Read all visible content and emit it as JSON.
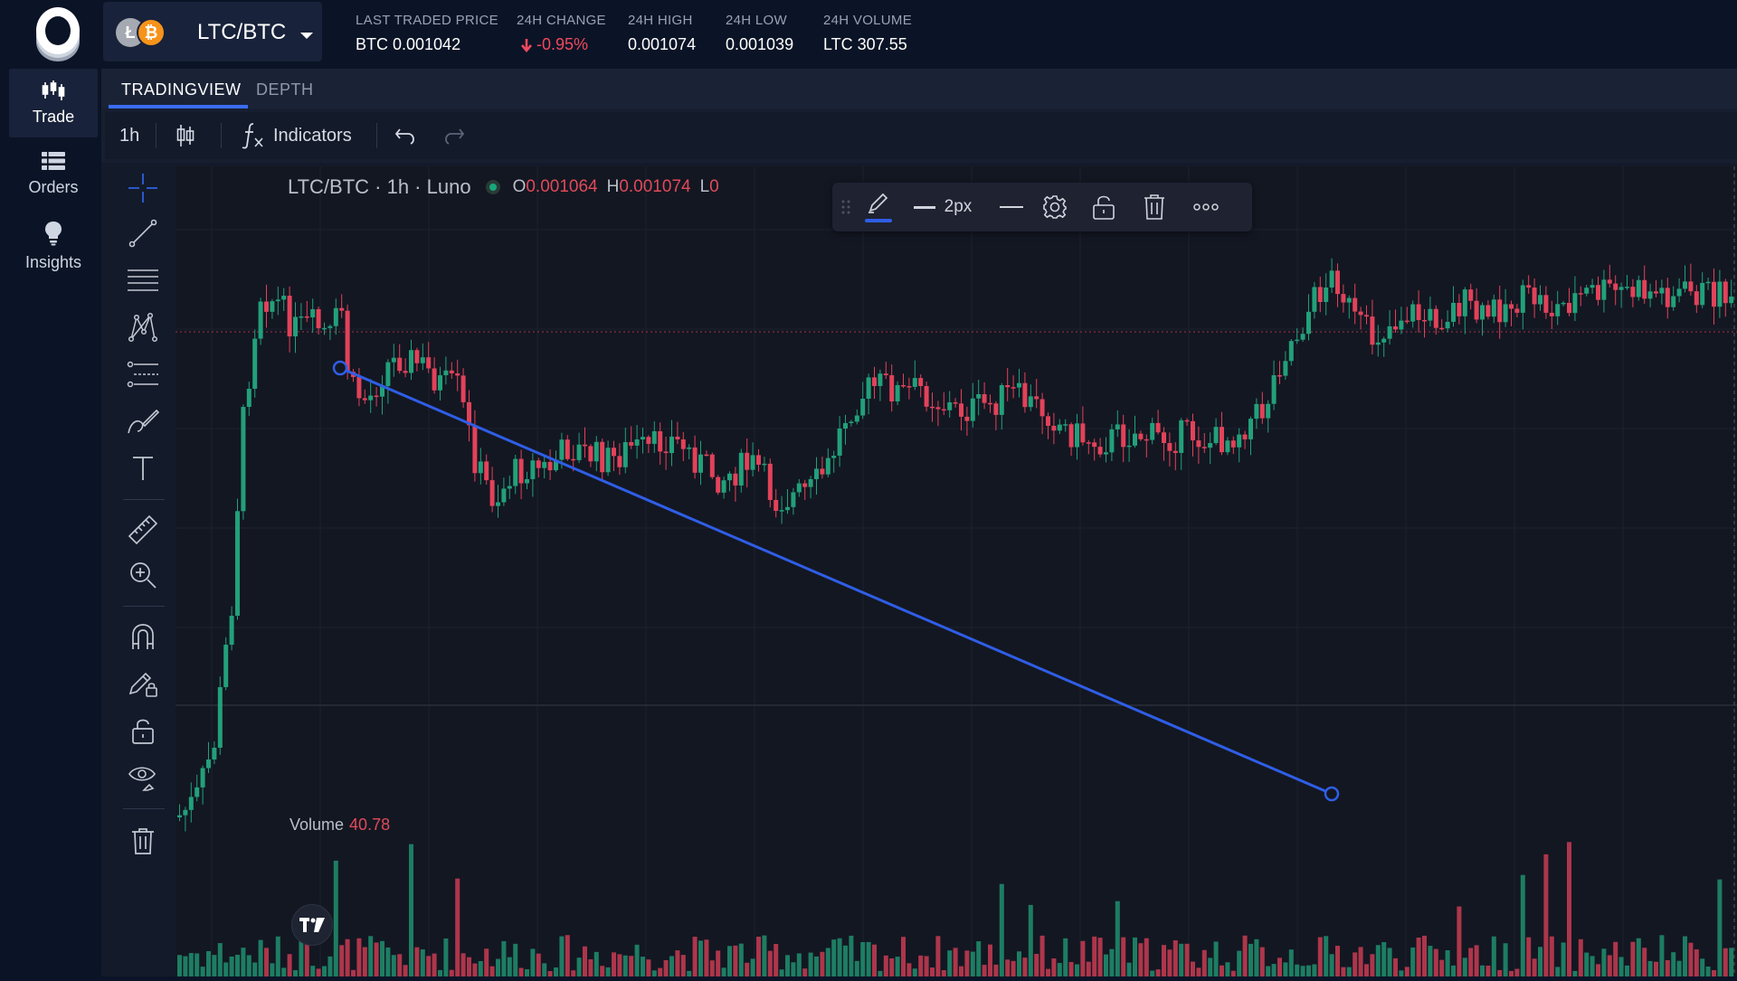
{
  "header": {
    "pair": "LTC/BTC",
    "coin_base": "Ł",
    "coin_quote": "₿",
    "stats": [
      {
        "label": "LAST TRADED PRICE",
        "value": "BTC 0.001042"
      },
      {
        "label": "24H CHANGE",
        "value": "-0.95%"
      },
      {
        "label": "24H HIGH",
        "value": "0.001074"
      },
      {
        "label": "24H LOW",
        "value": "0.001039"
      },
      {
        "label": "24H VOLUME",
        "value": "LTC 307.55"
      }
    ]
  },
  "sidebar": {
    "items": [
      {
        "label": "Trade",
        "icon": "candlestick-icon",
        "active": true
      },
      {
        "label": "Orders",
        "icon": "list-icon",
        "active": false
      },
      {
        "label": "Insights",
        "icon": "lightbulb-icon",
        "active": false
      }
    ]
  },
  "tabs": [
    {
      "label": "TRADINGVIEW",
      "active": true
    },
    {
      "label": "DEPTH",
      "active": false
    }
  ],
  "toolbar": {
    "interval": "1h",
    "indicators_label": "Indicators"
  },
  "chart": {
    "title": "LTC/BTC · 1h · Luno",
    "open_prefix": "O",
    "open_value": "0.001064",
    "high_prefix": "H",
    "high_value": "0.001074",
    "low_prefix": "L",
    "low_value": "0",
    "volume_label": "Volume",
    "volume_value": "40.78",
    "line_width_label": "2px",
    "colors": {
      "up": "#22a07a",
      "down": "#e2425a",
      "trendline": "#2f5ee6"
    }
  }
}
